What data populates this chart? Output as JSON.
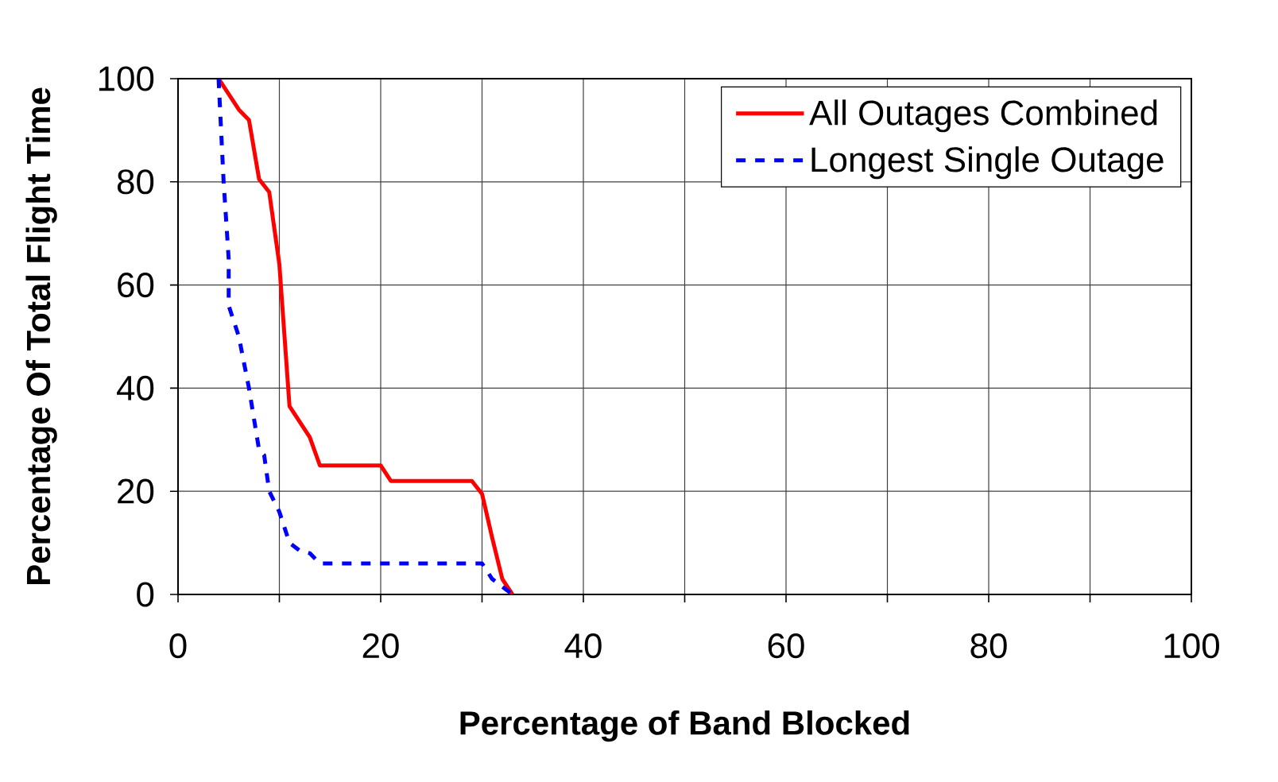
{
  "chart_data": {
    "type": "line",
    "xlabel": "Percentage of Band Blocked",
    "ylabel": "Percentage Of Total Flight Time",
    "xlim": [
      0,
      100
    ],
    "ylim": [
      0,
      100
    ],
    "xticks": [
      0,
      {
        "value": 10,
        "label": null
      },
      20,
      {
        "value": 30,
        "label": null
      },
      40,
      {
        "value": 50,
        "label": null
      },
      60,
      {
        "value": 70,
        "label": null
      },
      80,
      {
        "value": 90,
        "label": null
      },
      100
    ],
    "yticks": [
      0,
      20,
      40,
      60,
      80,
      100
    ],
    "grid": true,
    "legend": "top right",
    "marker": "none",
    "series": [
      {
        "name": "All Outages Combined",
        "color": "#ff0000",
        "line_style": "solid",
        "x": [
          4,
          5,
          6,
          7,
          8,
          9,
          10,
          11,
          12,
          13,
          14,
          20,
          21,
          29,
          30,
          31,
          32,
          33
        ],
        "values": [
          100,
          97,
          94,
          92,
          80.5,
          78,
          64,
          36.5,
          33.5,
          30.5,
          25,
          25,
          22,
          22,
          19.5,
          11,
          3,
          0
        ]
      },
      {
        "name": "Longest Single Outage",
        "color": "#0000ff",
        "line_style": "dashed",
        "x": [
          4,
          4.5,
          5,
          5,
          6,
          7,
          8,
          8.5,
          9,
          10,
          11,
          12,
          13,
          14,
          30,
          31,
          33
        ],
        "values": [
          100,
          80,
          65,
          56,
          50,
          40,
          28,
          27,
          20,
          16,
          10,
          8.5,
          8,
          6,
          6,
          3,
          0
        ]
      }
    ]
  }
}
